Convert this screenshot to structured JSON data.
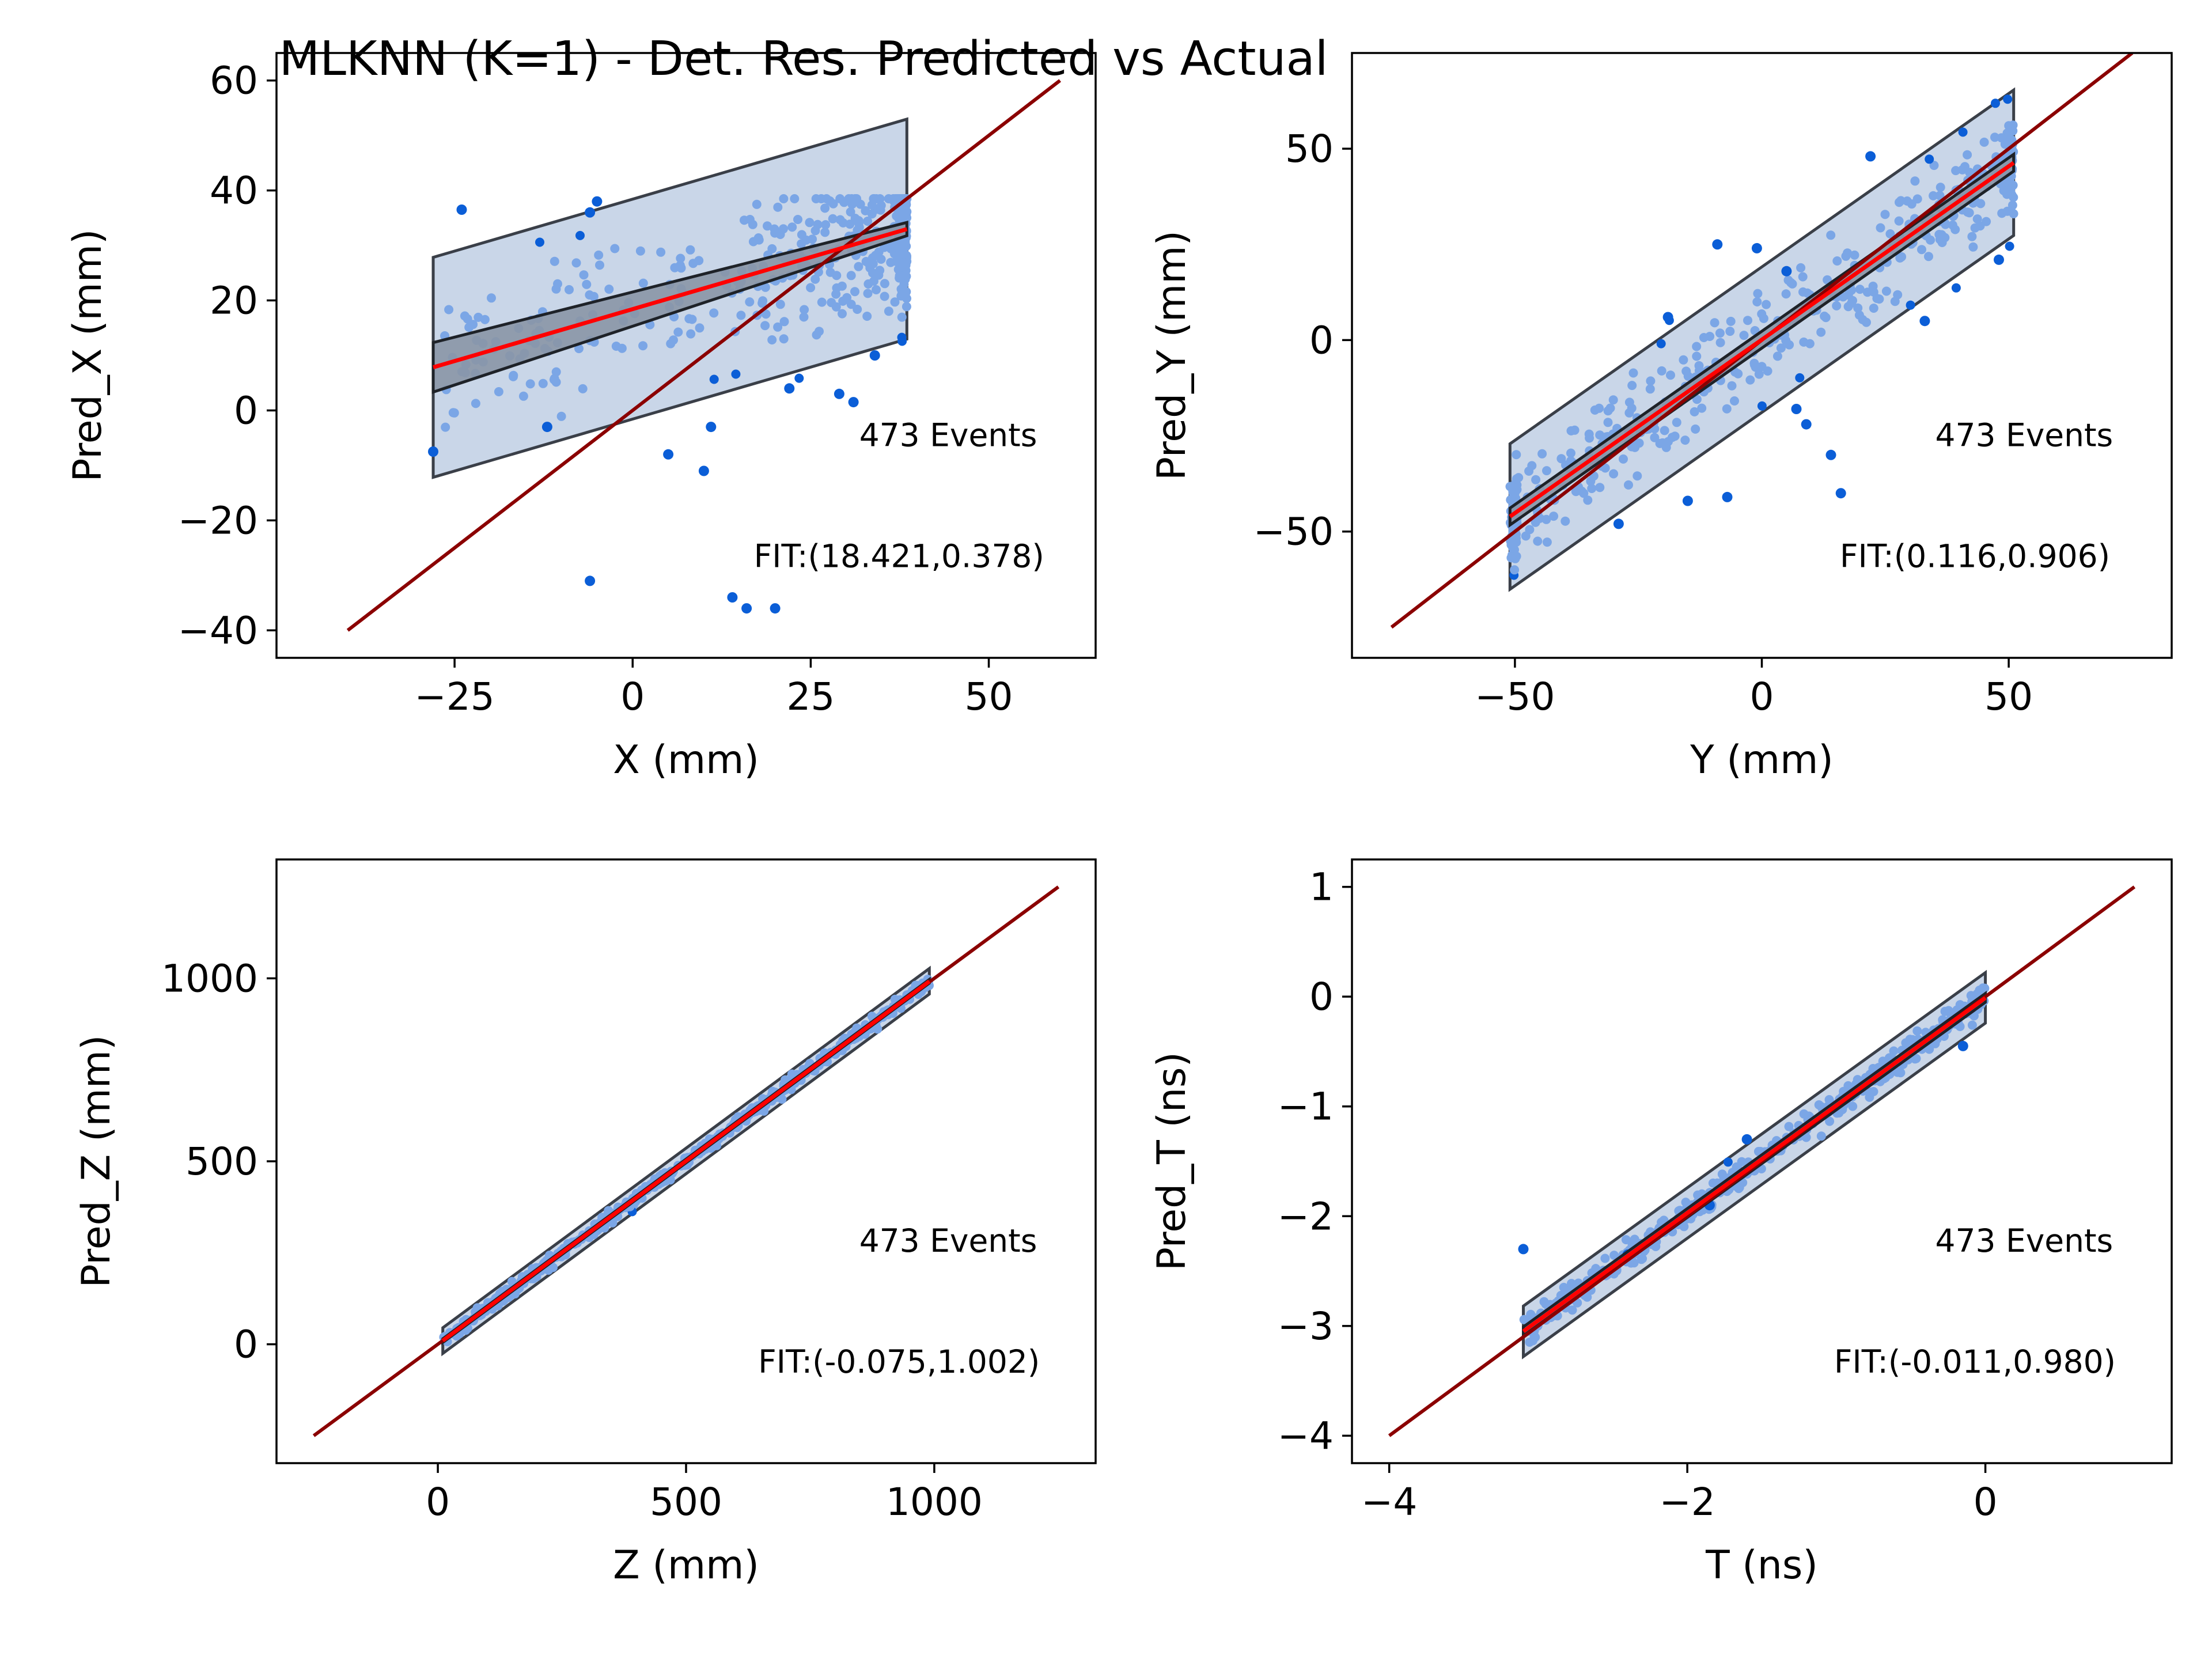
{
  "title": "MLKNN (K=1) - Det. Res. Predicted vs Actual",
  "colors": {
    "points_inner": "#7ba6e6",
    "points_outer": "#0b5ed7",
    "band_fill": "#c9d6e8",
    "band_edge": "#3a3f48",
    "ci_fill": "#8a96a6",
    "fit_line": "#ff0000",
    "identity_line": "#8b0000"
  },
  "chart_data": [
    {
      "type": "scatter",
      "xlabel": "X (mm)",
      "ylabel": "Pred_X (mm)",
      "xlim": [
        -50,
        65
      ],
      "ylim": [
        -45,
        65
      ],
      "xticks": [
        -25,
        0,
        25,
        50
      ],
      "xtick_labels": [
        "−25",
        "0",
        "25",
        "50"
      ],
      "yticks": [
        -40,
        -20,
        0,
        20,
        40,
        60
      ],
      "ytick_labels": [
        "−40",
        "−20",
        "0",
        "20",
        "40",
        "60"
      ],
      "events_label": "473 Events",
      "fit_label": "FIT:(18.421,0.378)",
      "fit": {
        "intercept": 18.421,
        "slope": 0.378
      },
      "range": [
        -28,
        38.5
      ],
      "band_halfwidth": 20,
      "ci_halfwidth": [
        4.5,
        1.2
      ],
      "identity": [
        -40,
        60
      ],
      "n_events": 473,
      "noise": 7,
      "outliers": [
        [
          -28,
          -7.5
        ],
        [
          -24,
          36.5
        ],
        [
          -6,
          36
        ],
        [
          -5,
          38
        ],
        [
          -6,
          -31
        ],
        [
          5,
          -8
        ],
        [
          10,
          -11
        ],
        [
          11,
          -3
        ],
        [
          14,
          -34
        ],
        [
          16,
          -36
        ],
        [
          20,
          -36
        ],
        [
          22,
          4
        ],
        [
          29,
          3
        ],
        [
          31,
          1.5
        ],
        [
          34,
          10
        ],
        [
          -12,
          -3
        ]
      ]
    },
    {
      "type": "scatter",
      "xlabel": "Y (mm)",
      "ylabel": "Pred_Y (mm)",
      "xlim": [
        -83,
        83
      ],
      "ylim": [
        -83,
        75
      ],
      "xticks": [
        -50,
        0,
        50
      ],
      "xtick_labels": [
        "−50",
        "0",
        "50"
      ],
      "yticks": [
        -50,
        0,
        50
      ],
      "ytick_labels": [
        "−50",
        "0",
        "50"
      ],
      "events_label": "473 Events",
      "fit_label": "FIT:(0.116,0.906)",
      "fit": {
        "intercept": 0.116,
        "slope": 0.906
      },
      "range": [
        -51,
        51
      ],
      "band_halfwidth": 19,
      "ci_halfwidth": [
        2.2,
        2.2
      ],
      "identity": [
        -75,
        75
      ],
      "n_events": 473,
      "noise": 7,
      "outliers": [
        [
          -19,
          6
        ],
        [
          -9,
          25
        ],
        [
          -1,
          24
        ],
        [
          -7,
          -41
        ],
        [
          -15,
          -42
        ],
        [
          5,
          18
        ],
        [
          7,
          -18
        ],
        [
          9,
          -22
        ],
        [
          14,
          -30
        ],
        [
          16,
          -40
        ],
        [
          22,
          48
        ],
        [
          33,
          5
        ],
        [
          48,
          21
        ],
        [
          -29,
          -48
        ]
      ]
    },
    {
      "type": "scatter",
      "xlabel": "Z (mm)",
      "ylabel": "Pred_Z (mm)",
      "xlim": [
        -325,
        1325
      ],
      "ylim": [
        -325,
        1325
      ],
      "xticks": [
        0,
        500,
        1000
      ],
      "xtick_labels": [
        "0",
        "500",
        "1000"
      ],
      "yticks": [
        0,
        500,
        1000
      ],
      "ytick_labels": [
        "0",
        "500",
        "1000"
      ],
      "events_label": "473 Events",
      "fit_label": "FIT:(-0.075,1.002)",
      "fit": {
        "intercept": -0.075,
        "slope": 1.002
      },
      "range": [
        10,
        990
      ],
      "band_halfwidth": 35,
      "ci_halfwidth": [
        5,
        5
      ],
      "identity": [
        -250,
        1250
      ],
      "n_events": 473,
      "noise": 9,
      "outliers": []
    },
    {
      "type": "scatter",
      "xlabel": "T (ns)",
      "ylabel": "Pred_T (ns)",
      "xlim": [
        -4.25,
        1.25
      ],
      "ylim": [
        -4.25,
        1.25
      ],
      "xticks": [
        -4,
        -2,
        0
      ],
      "xtick_labels": [
        "−4",
        "−2",
        "0"
      ],
      "yticks": [
        -4,
        -3,
        -2,
        -1,
        0,
        1
      ],
      "ytick_labels": [
        "−4",
        "−3",
        "−2",
        "−1",
        "0",
        "1"
      ],
      "events_label": "473 Events",
      "fit_label": "FIT:(-0.011,0.980)",
      "fit": {
        "intercept": -0.011,
        "slope": 0.98
      },
      "range": [
        -3.1,
        0
      ],
      "band_halfwidth": 0.23,
      "ci_halfwidth": [
        0.04,
        0.04
      ],
      "identity": [
        -4,
        1
      ],
      "n_events": 473,
      "noise": 0.06,
      "outliers": [
        [
          -3.1,
          -2.3
        ],
        [
          -1.85,
          -1.9
        ],
        [
          -2.4,
          -2.35
        ],
        [
          -0.15,
          -0.45
        ],
        [
          -1.6,
          -1.3
        ]
      ]
    }
  ]
}
